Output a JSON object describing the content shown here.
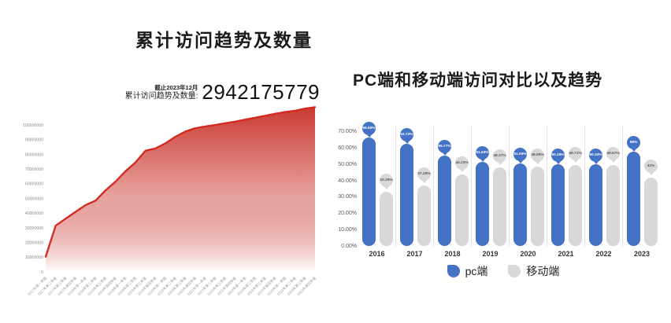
{
  "chart_data": [
    {
      "type": "area",
      "title": "累计访问趋势及数量",
      "annotation": {
        "as_of": "截止2023年12月",
        "label": "累计访问趋势及数量:",
        "value": "2942175779"
      },
      "categories": [
        "2017年第一季度",
        "2017年第二季度",
        "2017年第三季度",
        "2017年第四季度",
        "2018年第一季度",
        "2018年第二季度",
        "2018年第三季度",
        "2018年第四季度",
        "2019年第一季度",
        "2019年第二季度",
        "2019年第三季度",
        "2019年第四季度",
        "2020年第一季度",
        "2020年第二季度",
        "2020年第三季度",
        "2020年第四季度",
        "2021年第一季度",
        "2021年第二季度",
        "2021年第三季度",
        "2021年第四季度",
        "2022年第一季度",
        "2022年第二季度",
        "2022年第三季度",
        "2022年第四季度",
        "2023年第一季度",
        "2023年第二季度",
        "2023年第三季度",
        "2023年第四季度"
      ],
      "values": [
        10400000,
        31500000,
        36200000,
        40900000,
        45500000,
        48500000,
        55500000,
        61500000,
        68500000,
        74500000,
        82500000,
        84000000,
        87500000,
        92000000,
        95500000,
        97800000,
        99000000,
        100000000,
        101200000,
        102300000,
        103700000,
        105000000,
        106300000,
        107600000,
        108800000,
        109700000,
        111200000,
        112100000
      ],
      "y_ticks": [
        100000000,
        90000000,
        80000000,
        70000000,
        60000000,
        50000000,
        40000000,
        30000000,
        20000000,
        10000000,
        0
      ],
      "ylim": [
        0,
        115000000
      ],
      "grid": false,
      "xlabel": "",
      "ylabel": "",
      "line_color": "#d5281c",
      "fill_top_color": "#c9342d",
      "fill_bottom_color": "#ffffff",
      "axis_text_color": "#8a8a8a"
    },
    {
      "type": "bar",
      "title": "PC端和移动端访问对比以及趋势",
      "categories": [
        "2016",
        "2017",
        "2018",
        "2019",
        "2020",
        "2021",
        "2022",
        "2023"
      ],
      "series": [
        {
          "name": "pc端",
          "color": "#4472c4",
          "label_text_color": "#ffffff",
          "values": [
            66.65,
            62.72,
            55.77,
            51.63,
            51.05,
            50.29,
            50.33,
            58
          ],
          "labels": [
            "66.65%",
            "62.72%",
            "55.77%",
            "51.63%",
            "51.05%",
            "50.29%",
            "50.33%",
            "58%"
          ]
        },
        {
          "name": "移动端",
          "color": "#d8d8d8",
          "label_text_color": "#595959",
          "values": [
            33.35,
            37.28,
            44.23,
            48.37,
            48.95,
            49.71,
            49.67,
            42
          ],
          "labels": [
            "33.35%",
            "37.28%",
            "44.23%",
            "48.37%",
            "48.95%",
            "49.71%",
            "49.67%",
            "42%"
          ]
        }
      ],
      "y_ticks": [
        "70.00%",
        "60.00%",
        "50.00%",
        "40.00%",
        "30.00%",
        "20.00%",
        "10.00%",
        "0.00%"
      ],
      "ylim": [
        0,
        70
      ],
      "grid": "vertical-separators",
      "separator_color": "#e3e3e3",
      "axis_text_color": "#595959",
      "legend_position": "bottom"
    }
  ]
}
